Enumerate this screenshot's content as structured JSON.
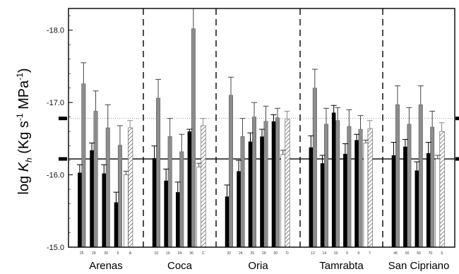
{
  "chart_data": {
    "type": "bar",
    "title": "",
    "xlabel": "",
    "ylabel": {
      "prefix": "log ",
      "symbol": "K",
      "subscript": "h",
      "units_1": " (Kg  s",
      "sup_1": "-1",
      "units_2": " MPa",
      "sup_2": "-1",
      "units_3": ")"
    },
    "ylim": [
      -15.0,
      -18.3
    ],
    "y_inverted": true,
    "yticks": [
      {
        "value": -15.0,
        "label": "-15.0"
      },
      {
        "value": -16.0,
        "label": "-16.0"
      },
      {
        "value": -17.0,
        "label": "-17.0"
      },
      {
        "value": -18.0,
        "label": "-18.0"
      }
    ],
    "reference_lines": [
      {
        "value": -16.22,
        "style": "solid",
        "marker": "thick-dash"
      },
      {
        "value": -16.78,
        "style": "dotted",
        "marker": "thick-dash"
      }
    ],
    "colors": {
      "black": "#000000",
      "gray": "#8c8c8c",
      "hatch": "#ffffff"
    },
    "groups": [
      {
        "name": "Arenas",
        "bars": [
          {
            "label": "25",
            "black": -16.03,
            "black_err": -16.14,
            "gray": -17.26,
            "gray_err": -17.55
          },
          {
            "label": "29",
            "black": -16.34,
            "black_err": -16.44,
            "gray": -16.88,
            "gray_err": -17.16
          },
          {
            "label": "30",
            "black": -16.02,
            "black_err": -16.14,
            "gray": -16.65,
            "gray_err": -16.97
          },
          {
            "label": "6",
            "black": -15.62,
            "black_err": -15.76,
            "gray": -16.41,
            "gray_err": -16.68
          },
          {
            "label": "A",
            "hatched": -16.65,
            "hatched_err": -16.75,
            "hatched_base": -16.0,
            "hatched_base_err": -16.05
          }
        ]
      },
      {
        "name": "Coca",
        "bars": [
          {
            "label": "10",
            "black": -16.23,
            "black_err": -16.4,
            "gray": -17.06,
            "gray_err": -17.32
          },
          {
            "label": "16",
            "black": -15.92,
            "black_err": -16.08,
            "gray": -16.53,
            "gray_err": -16.78
          },
          {
            "label": "24",
            "black": -15.76,
            "black_err": -15.9,
            "gray": -16.32,
            "gray_err": -16.56
          },
          {
            "label": "36",
            "black": -16.6,
            "black_err": -16.63,
            "gray": -18.02,
            "gray_err": -18.3
          },
          {
            "label": "C",
            "hatched": -16.68,
            "hatched_err": -16.78,
            "hatched_base": -16.11,
            "hatched_base_err": -16.16
          }
        ]
      },
      {
        "name": "Oria",
        "bars": [
          {
            "label": "20",
            "black": -15.7,
            "black_err": -15.86,
            "gray": -17.1,
            "gray_err": -17.35
          },
          {
            "label": "24",
            "black": -16.05,
            "black_err": -16.2,
            "gray": -16.53,
            "gray_err": -16.78
          },
          {
            "label": "25",
            "black": -16.46,
            "black_err": -16.58,
            "gray": -16.8,
            "gray_err": -17.0
          },
          {
            "label": "29",
            "black": -16.53,
            "black_err": -16.63,
            "gray": -16.74,
            "gray_err": -16.95
          },
          {
            "label": "30",
            "black": -16.74,
            "black_err": -16.83,
            "gray": -16.79,
            "gray_err": -16.92
          },
          {
            "label": "O",
            "hatched": -16.77,
            "hatched_err": -16.88,
            "hatched_base": -16.28,
            "hatched_base_err": -16.34
          }
        ]
      },
      {
        "name": "Tamrabta",
        "bars": [
          {
            "label": "12",
            "black": -16.38,
            "black_err": -16.54,
            "gray": -17.2,
            "gray_err": -17.46
          },
          {
            "label": "14",
            "black": -16.16,
            "black_err": -16.27,
            "gray": -16.7,
            "gray_err": -16.92
          },
          {
            "label": "19",
            "black": -16.86,
            "black_err": -16.96,
            "gray": -16.75,
            "gray_err": -16.93
          },
          {
            "label": "6",
            "black": -16.29,
            "black_err": -16.43,
            "gray": -16.67,
            "gray_err": -16.9
          },
          {
            "label": "9",
            "black": -16.48,
            "black_err": -16.56,
            "gray": -16.63,
            "gray_err": -16.82
          },
          {
            "label": "T",
            "hatched": -16.64,
            "hatched_err": -16.75,
            "hatched_base": -16.44,
            "hatched_base_err": -16.48
          }
        ]
      },
      {
        "name": "San Cipriano",
        "bars": [
          {
            "label": "45",
            "black": -16.27,
            "black_err": -16.45,
            "gray": -16.97,
            "gray_err": -17.23
          },
          {
            "label": "50",
            "black": -16.39,
            "black_err": -16.49,
            "gray": -16.7,
            "gray_err": -16.93
          },
          {
            "label": "60",
            "black": -16.06,
            "black_err": -16.18,
            "gray": -16.97,
            "gray_err": -17.23
          },
          {
            "label": "70",
            "black": -16.3,
            "black_err": -16.45,
            "gray": -16.66,
            "gray_err": -16.88
          },
          {
            "label": "S",
            "hatched": -16.6,
            "hatched_err": -16.72,
            "hatched_base": -16.22,
            "hatched_base_err": -16.27
          }
        ]
      }
    ]
  }
}
